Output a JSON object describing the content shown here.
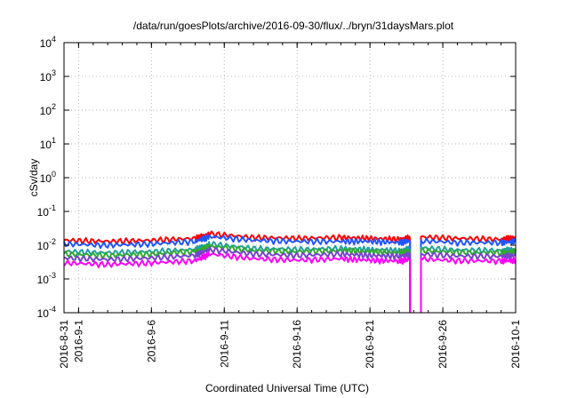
{
  "chart_data": {
    "type": "line",
    "title": "/data/run/goesPlots/archive/2016-09-30/flux/../bryn/31daysMars.plot",
    "xlabel": "Coordinated Universal Time (UTC)",
    "ylabel": "cSv/day",
    "yscale": "log",
    "ylim": [
      0.0001,
      10000
    ],
    "xlim": [
      "2016-08-31",
      "2016-10-01"
    ],
    "grid": true,
    "x_ticks": [
      "2016-8-31",
      "2016-9-1",
      "2016-9-6",
      "2016-9-11",
      "2016-9-16",
      "2016-9-21",
      "2016-9-26",
      "2016-10-1"
    ],
    "y_ticks": [
      {
        "value": 0.0001,
        "base": "10",
        "exp": "-4"
      },
      {
        "value": 0.001,
        "base": "10",
        "exp": "-3"
      },
      {
        "value": 0.01,
        "base": "10",
        "exp": "-2"
      },
      {
        "value": 0.1,
        "base": "10",
        "exp": "-1"
      },
      {
        "value": 1,
        "base": "10",
        "exp": "0"
      },
      {
        "value": 10,
        "base": "10",
        "exp": "1"
      },
      {
        "value": 100,
        "base": "10",
        "exp": "2"
      },
      {
        "value": 1000,
        "base": "10",
        "exp": "3"
      },
      {
        "value": 10000,
        "base": "10",
        "exp": "4"
      }
    ],
    "gap": {
      "start": "2016-09-23T18:00",
      "end": "2016-09-24T12:00"
    },
    "series": [
      {
        "color": "#ff0000",
        "x": [
          "2016-08-31",
          "2016-09-03",
          "2016-09-06",
          "2016-09-09",
          "2016-09-10",
          "2016-09-13",
          "2016-09-16",
          "2016-09-19",
          "2016-09-21",
          "2016-09-23",
          "2016-09-24",
          "2016-09-27",
          "2016-09-30",
          "2016-10-01"
        ],
        "y": [
          0.014,
          0.013,
          0.014,
          0.016,
          0.022,
          0.017,
          0.016,
          0.017,
          0.016,
          0.015,
          0.018,
          0.016,
          0.015,
          0.017
        ]
      },
      {
        "color": "#2255ff",
        "x": [
          "2016-08-31",
          "2016-09-03",
          "2016-09-06",
          "2016-09-09",
          "2016-09-10",
          "2016-09-13",
          "2016-09-16",
          "2016-09-19",
          "2016-09-21",
          "2016-09-23",
          "2016-09-24",
          "2016-09-27",
          "2016-09-30",
          "2016-10-01"
        ],
        "y": [
          0.011,
          0.01,
          0.011,
          0.013,
          0.018,
          0.014,
          0.013,
          0.013,
          0.013,
          0.012,
          0.014,
          0.012,
          0.012,
          0.013
        ]
      },
      {
        "color": "#20a0a0",
        "x": [
          "2016-08-31",
          "2016-09-03",
          "2016-09-06",
          "2016-09-09",
          "2016-09-10",
          "2016-09-13",
          "2016-09-16",
          "2016-09-19",
          "2016-09-21",
          "2016-09-23",
          "2016-09-24",
          "2016-09-27",
          "2016-09-30",
          "2016-10-01"
        ],
        "y": [
          0.0065,
          0.006,
          0.0065,
          0.0075,
          0.011,
          0.008,
          0.0075,
          0.008,
          0.0075,
          0.007,
          0.0085,
          0.0072,
          0.007,
          0.0075
        ]
      },
      {
        "color": "#33aa33",
        "x": [
          "2016-08-31",
          "2016-09-03",
          "2016-09-06",
          "2016-09-09",
          "2016-09-10",
          "2016-09-13",
          "2016-09-16",
          "2016-09-19",
          "2016-09-21",
          "2016-09-23",
          "2016-09-24",
          "2016-09-27",
          "2016-09-30",
          "2016-10-01"
        ],
        "y": [
          0.0055,
          0.005,
          0.0055,
          0.0065,
          0.0095,
          0.007,
          0.0065,
          0.007,
          0.0065,
          0.006,
          0.0072,
          0.0062,
          0.006,
          0.0065
        ]
      },
      {
        "color": "#7744cc",
        "x": [
          "2016-08-31",
          "2016-09-03",
          "2016-09-06",
          "2016-09-09",
          "2016-09-10",
          "2016-09-13",
          "2016-09-16",
          "2016-09-19",
          "2016-09-21",
          "2016-09-23",
          "2016-09-24",
          "2016-09-27",
          "2016-09-30",
          "2016-10-01"
        ],
        "y": [
          0.0042,
          0.0038,
          0.0042,
          0.005,
          0.0075,
          0.0055,
          0.005,
          0.0055,
          0.005,
          0.0047,
          0.0056,
          0.0048,
          0.0047,
          0.005
        ]
      },
      {
        "color": "#ff00ff",
        "x": [
          "2016-08-31",
          "2016-09-03",
          "2016-09-06",
          "2016-09-09",
          "2016-09-10",
          "2016-09-13",
          "2016-09-16",
          "2016-09-19",
          "2016-09-21",
          "2016-09-23",
          "2016-09-24",
          "2016-09-27",
          "2016-09-30",
          "2016-10-01"
        ],
        "y": [
          0.003,
          0.0027,
          0.003,
          0.0035,
          0.0055,
          0.004,
          0.0036,
          0.004,
          0.0036,
          0.0034,
          0.004,
          0.0035,
          0.0034,
          0.0036
        ]
      }
    ]
  }
}
